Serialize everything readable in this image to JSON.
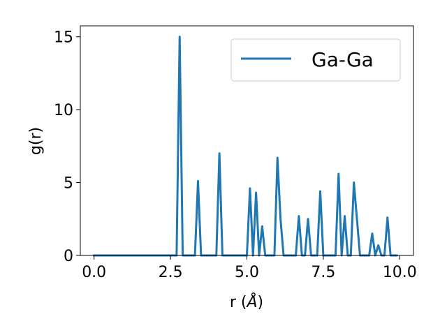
{
  "chart_data": {
    "type": "line",
    "title": "",
    "xlabel_prefix": "r (",
    "xlabel_unit": "Å",
    "xlabel_suffix": ")",
    "ylabel": "g(r)",
    "xlim": [
      -0.45,
      10.45
    ],
    "ylim": [
      0,
      15.75
    ],
    "xticks": [
      0.0,
      2.5,
      5.0,
      7.5,
      10.0
    ],
    "xtick_labels": [
      "0.0",
      "2.5",
      "5.0",
      "7.5",
      "10.0"
    ],
    "yticks": [
      0,
      5,
      10,
      15
    ],
    "ytick_labels": [
      "0",
      "5",
      "10",
      "15"
    ],
    "grid": false,
    "legend_position": "upper right",
    "series": [
      {
        "name": "Ga-Ga",
        "color": "#1f77b4",
        "x": [
          0.0,
          2.7,
          2.8,
          2.9,
          3.3,
          3.4,
          3.5,
          4.0,
          4.1,
          4.2,
          5.0,
          5.1,
          5.2,
          5.3,
          5.4,
          5.5,
          5.6,
          5.9,
          6.0,
          6.1,
          6.2,
          6.6,
          6.7,
          6.8,
          6.9,
          7.0,
          7.1,
          7.3,
          7.4,
          7.5,
          7.9,
          8.0,
          8.1,
          8.2,
          8.3,
          8.4,
          8.5,
          8.6,
          8.7,
          9.0,
          9.1,
          9.2,
          9.3,
          9.4,
          9.5,
          9.6,
          9.7,
          9.8,
          9.9
        ],
        "y": [
          0,
          0,
          15.0,
          0,
          0,
          5.1,
          0,
          0,
          7.0,
          0,
          0,
          4.6,
          0,
          4.3,
          0,
          2.0,
          0,
          0,
          6.7,
          2.5,
          0,
          0,
          2.7,
          0,
          0,
          2.5,
          0,
          0,
          4.4,
          0,
          0,
          5.6,
          0,
          2.7,
          0,
          0,
          5.0,
          2.5,
          0,
          0,
          1.5,
          0,
          0.7,
          0,
          0,
          2.6,
          0,
          0,
          0
        ]
      }
    ]
  }
}
